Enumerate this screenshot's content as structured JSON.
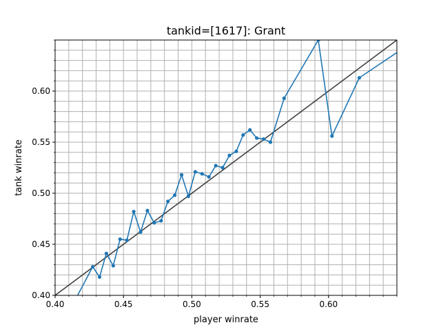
{
  "chart_data": {
    "type": "line",
    "title": "tankid=[1617]: Grant",
    "xlabel": "player winrate",
    "ylabel": "tank winrate",
    "xlim": [
      0.4,
      0.65
    ],
    "ylim": [
      0.4,
      0.65
    ],
    "xticks": [
      "0.40",
      "0.45",
      "0.50",
      "0.55",
      "0.60"
    ],
    "yticks": [
      "0.40",
      "0.45",
      "0.50",
      "0.55",
      "0.60"
    ],
    "grid": true,
    "minor_grid_step": 0.01,
    "colors": {
      "series": "#1f77b4",
      "reference": "#404040",
      "grid": "#b0b0b0"
    },
    "series": [
      {
        "values_x": [
          0.4125,
          0.4275,
          0.4325,
          0.4375,
          0.4425,
          0.4475,
          0.4525,
          0.4575,
          0.4625,
          0.4675,
          0.4725,
          0.4775,
          0.4825,
          0.4875,
          0.4925,
          0.4975,
          0.5025,
          0.5075,
          0.5125,
          0.5175,
          0.5225,
          0.5275,
          0.5325,
          0.5375,
          0.5425,
          0.5475,
          0.5525,
          0.5575,
          0.5675,
          0.5925,
          0.6025,
          0.6225,
          0.6525
        ],
        "values_y": [
          0.39,
          0.428,
          0.418,
          0.441,
          0.429,
          0.455,
          0.454,
          0.482,
          0.462,
          0.483,
          0.471,
          0.473,
          0.492,
          0.498,
          0.518,
          0.497,
          0.521,
          0.519,
          0.516,
          0.527,
          0.525,
          0.537,
          0.541,
          0.557,
          0.562,
          0.554,
          0.553,
          0.55,
          0.593,
          0.65,
          0.556,
          0.613,
          0.64
        ],
        "markers_from_index": 1,
        "markers_count": 31
      }
    ],
    "reference_line": {
      "kind": "y=x",
      "x": [
        0.4,
        0.65
      ],
      "y": [
        0.4,
        0.65
      ]
    }
  }
}
